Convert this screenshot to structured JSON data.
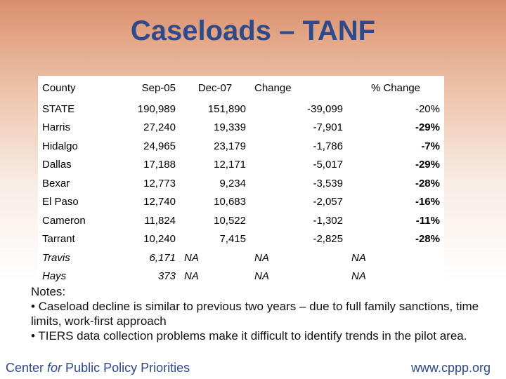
{
  "title": "Caseloads – TANF",
  "table": {
    "headers": [
      "County",
      "Sep-05",
      "Dec-07",
      "Change",
      "% Change"
    ],
    "rows": [
      {
        "county": "STATE",
        "sep05": "190,989",
        "dec07": "151,890",
        "change": "-39,099",
        "pct": "-20%",
        "pct_bold": false,
        "italic": false
      },
      {
        "county": "Harris",
        "sep05": "27,240",
        "dec07": "19,339",
        "change": "-7,901",
        "pct": "-29%",
        "pct_bold": true,
        "italic": false
      },
      {
        "county": "Hidalgo",
        "sep05": "24,965",
        "dec07": "23,179",
        "change": "-1,786",
        "pct": "-7%",
        "pct_bold": true,
        "italic": false
      },
      {
        "county": "Dallas",
        "sep05": "17,188",
        "dec07": "12,171",
        "change": "-5,017",
        "pct": "-29%",
        "pct_bold": true,
        "italic": false
      },
      {
        "county": "Bexar",
        "sep05": "12,773",
        "dec07": "9,234",
        "change": "-3,539",
        "pct": "-28%",
        "pct_bold": true,
        "italic": false
      },
      {
        "county": "El Paso",
        "sep05": "12,740",
        "dec07": "10,683",
        "change": "-2,057",
        "pct": "-16%",
        "pct_bold": true,
        "italic": false
      },
      {
        "county": "Cameron",
        "sep05": "11,824",
        "dec07": "10,522",
        "change": "-1,302",
        "pct": "-11%",
        "pct_bold": true,
        "italic": false
      },
      {
        "county": "Tarrant",
        "sep05": "10,240",
        "dec07": "7,415",
        "change": "-2,825",
        "pct": "-28%",
        "pct_bold": true,
        "italic": false
      },
      {
        "county": "Travis",
        "sep05": "6,171",
        "dec07": "NA",
        "change": "NA",
        "pct": "NA",
        "pct_bold": false,
        "italic": true
      },
      {
        "county": "Hays",
        "sep05": "373",
        "dec07": "NA",
        "change": "NA",
        "pct": "NA",
        "pct_bold": false,
        "italic": true
      }
    ]
  },
  "notes": {
    "heading": "Notes:",
    "bullets": [
      "• Caseload decline is similar to previous two years – due to full family sanctions, time limits, work-first approach",
      "• TIERS data collection problems make it difficult to identify trends in the pilot area."
    ]
  },
  "footer": {
    "left_pre": "Center ",
    "left_italic": "for",
    "left_post": " Public Policy Priorities",
    "right": "www.cppp.org"
  }
}
